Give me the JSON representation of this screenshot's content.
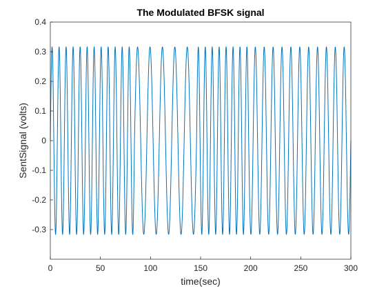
{
  "chart_data": {
    "type": "line",
    "title": "The Modulated BFSK signal",
    "xlabel": "time(sec)",
    "ylabel": "SentSignal (volts)",
    "xlim": [
      0,
      300
    ],
    "ylim": [
      -0.4,
      0.4
    ],
    "xticks": [
      "0",
      "50",
      "100",
      "150",
      "200",
      "250",
      "300"
    ],
    "yticks": [
      "-0.3",
      "-0.2",
      "-0.1",
      "0",
      "0.1",
      "0.2",
      "0.3"
    ],
    "ytick_top": "0.4",
    "grid": false,
    "line_color": "#0072BD",
    "series": [
      {
        "amplitude": 0.316,
        "segments": [
          {
            "t_start": 0,
            "t_end": 84,
            "cycles": 12
          },
          {
            "t_start": 84,
            "t_end": 146,
            "cycles": 5
          },
          {
            "t_start": 146,
            "t_end": 198,
            "cycles": 7.5
          },
          {
            "t_start": 198,
            "t_end": 300,
            "cycles": 11.5
          }
        ]
      }
    ]
  }
}
